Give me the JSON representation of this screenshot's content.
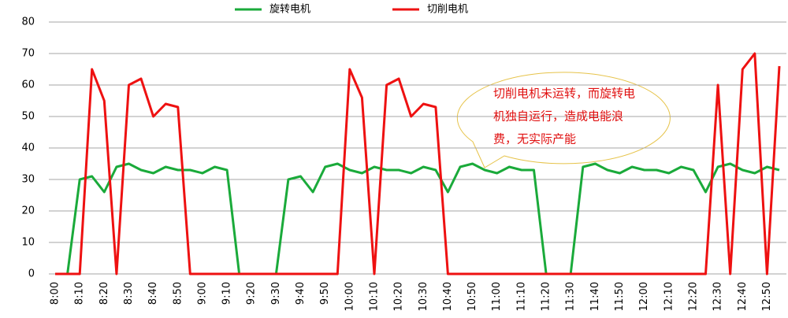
{
  "chart_data": {
    "type": "line",
    "categories": [
      "8:00",
      null,
      "8:10",
      null,
      "8:20",
      null,
      "8:30",
      null,
      "8:40",
      null,
      "8:50",
      null,
      "9:00",
      null,
      "9:10",
      null,
      "9:20",
      null,
      "9:30",
      null,
      "9:40",
      null,
      "9:50",
      null,
      "10:00",
      null,
      "10:10",
      null,
      "10:20",
      null,
      "10:30",
      null,
      "10:40",
      null,
      "10:50",
      null,
      "11:00",
      null,
      "11:10",
      null,
      "11:20",
      null,
      "11:30",
      null,
      "11:40",
      null,
      "11:50",
      null,
      "12:00",
      null,
      "12:10",
      null,
      "12:20",
      null,
      "12:30",
      null,
      "12:40",
      null,
      "12:50",
      null
    ],
    "series": [
      {
        "name": "旋转电机",
        "color": "#1aaa3a",
        "values": [
          0,
          0,
          30,
          31,
          26,
          34,
          35,
          33,
          32,
          34,
          33,
          33,
          32,
          34,
          33,
          0,
          0,
          0,
          0,
          30,
          31,
          26,
          34,
          35,
          33,
          32,
          34,
          33,
          33,
          32,
          34,
          33,
          26,
          34,
          35,
          33,
          32,
          34,
          33,
          33,
          0,
          0,
          0,
          34,
          35,
          33,
          32,
          34,
          33,
          33,
          32,
          34,
          33,
          26,
          34,
          35,
          33,
          32,
          34,
          33
        ]
      },
      {
        "name": "切削电机",
        "color": "#ee1111",
        "values": [
          0,
          0,
          0,
          65,
          55,
          0,
          60,
          62,
          50,
          54,
          53,
          0,
          0,
          0,
          0,
          0,
          0,
          0,
          0,
          0,
          0,
          0,
          0,
          0,
          65,
          56,
          0,
          60,
          62,
          50,
          54,
          53,
          0,
          0,
          0,
          0,
          0,
          0,
          0,
          0,
          0,
          0,
          0,
          0,
          0,
          0,
          0,
          0,
          0,
          0,
          0,
          0,
          0,
          0,
          60,
          0,
          65,
          70,
          0,
          66
        ]
      }
    ],
    "ylim": [
      0,
      80
    ],
    "yticks": [
      0,
      10,
      20,
      30,
      40,
      50,
      60,
      70,
      80
    ],
    "grid": true,
    "legend": "top",
    "annotation": {
      "lines": [
        "切削电机未运转，而旋转电",
        "机独自运行，造成电能浪",
        "费，无实际产能"
      ]
    }
  }
}
